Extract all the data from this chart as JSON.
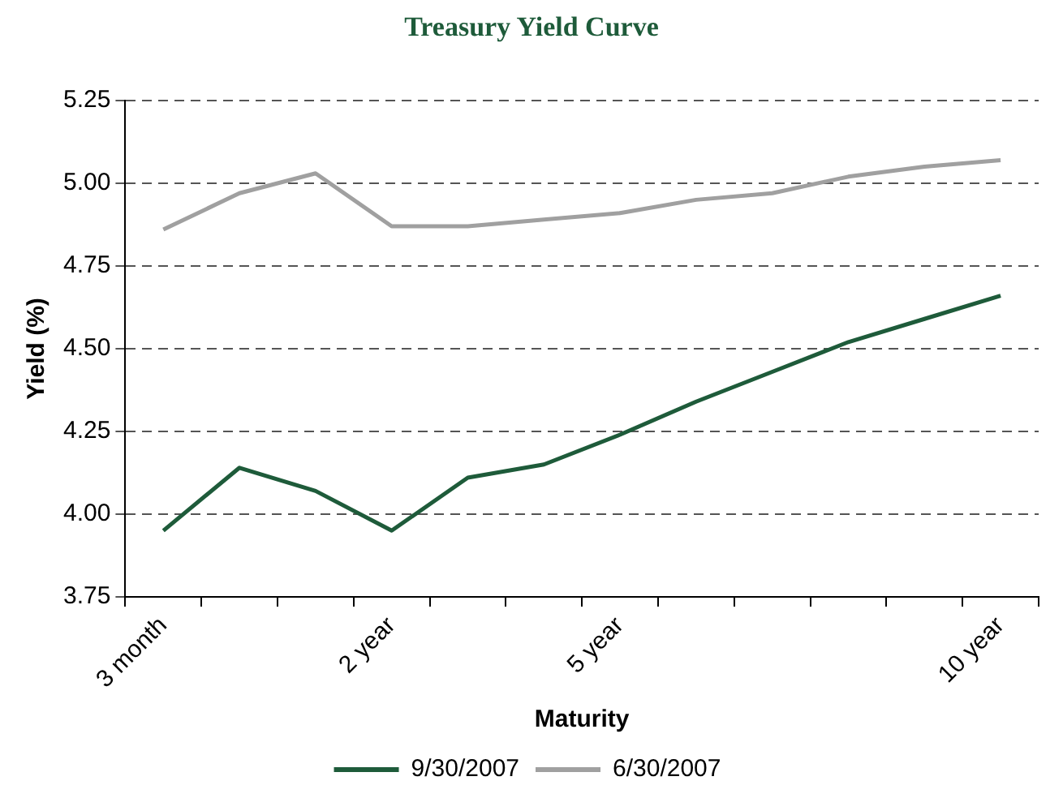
{
  "chart_data": {
    "type": "line",
    "title": "Treasury Yield Curve",
    "xlabel": "Maturity",
    "ylabel": "Yield (%)",
    "categories": [
      "3 month",
      null,
      null,
      "2 year",
      null,
      null,
      "5 year",
      null,
      null,
      null,
      null,
      "10 year"
    ],
    "series": [
      {
        "name": "9/30/2007",
        "color": "#1e5b3a",
        "values": [
          3.95,
          4.14,
          4.07,
          3.95,
          4.11,
          4.15,
          4.24,
          4.34,
          4.43,
          4.52,
          4.59,
          4.66
        ]
      },
      {
        "name": "6/30/2007",
        "color": "#a0a0a0",
        "values": [
          4.86,
          4.97,
          5.03,
          4.87,
          4.87,
          4.89,
          4.91,
          4.95,
          4.97,
          5.02,
          5.05,
          5.07
        ]
      }
    ],
    "ylim": [
      3.75,
      5.25
    ],
    "yticks": [
      3.75,
      {
        "value": 4,
        "label": "4.00"
      },
      4.25,
      {
        "value": 4.5,
        "label": "4.50"
      },
      4.75,
      {
        "value": 5,
        "label": "5.00"
      },
      5.25
    ],
    "grid": "y",
    "legend": "bottom",
    "marker": "none",
    "line_style": "solid"
  }
}
